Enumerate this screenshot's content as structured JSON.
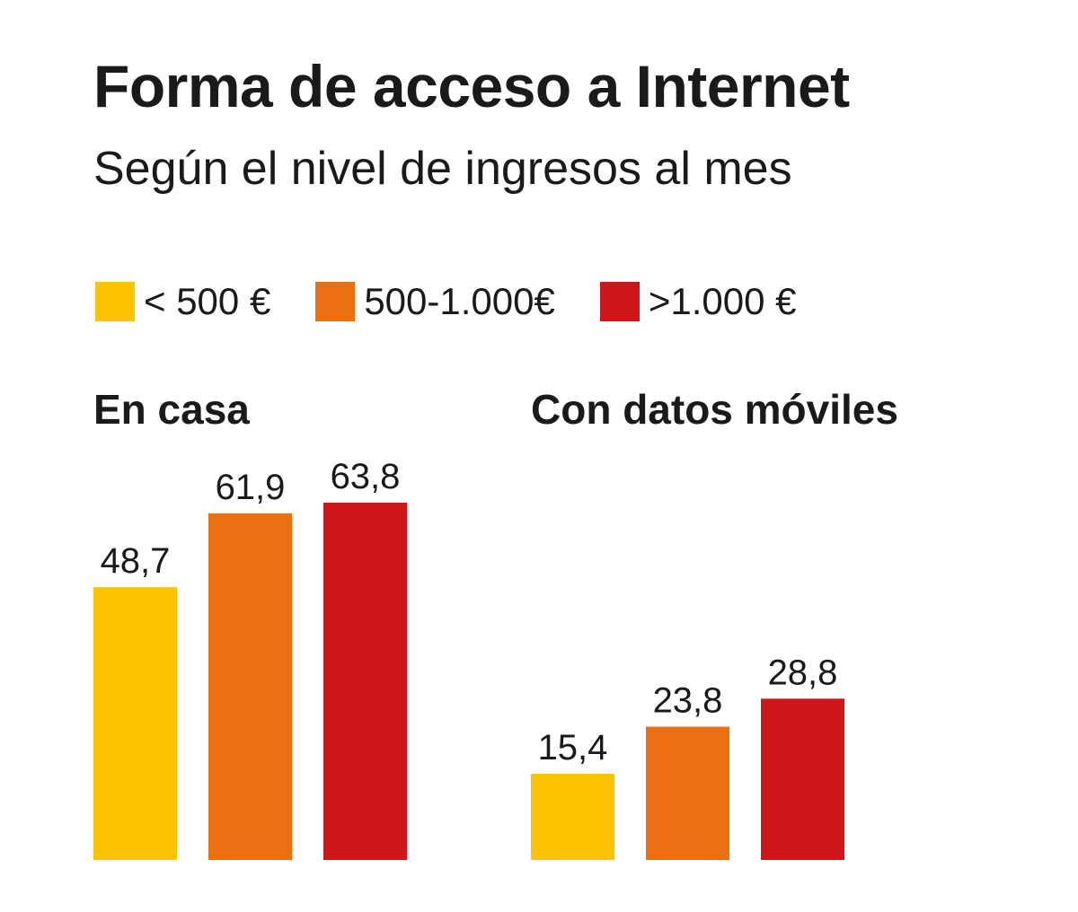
{
  "chart_data": {
    "type": "bar",
    "title": "Forma de acceso a Internet",
    "subtitle": "Según el nivel de ingresos al mes",
    "categories": [
      "En casa",
      "Con datos móviles"
    ],
    "series": [
      {
        "name": "< 500 €",
        "color": "#FDC300",
        "values": [
          48.7,
          15.4
        ],
        "labels": [
          "48,7",
          "15,4"
        ]
      },
      {
        "name": "500-1.000€",
        "color": "#EB7011",
        "values": [
          61.9,
          23.8
        ],
        "labels": [
          "61,9",
          "23,8"
        ]
      },
      {
        "name": ">1.000 €",
        "color": "#CF171B",
        "values": [
          63.8,
          28.8
        ],
        "labels": [
          "63,8",
          "28,8"
        ]
      }
    ],
    "ylim": [
      0,
      70
    ],
    "grid": false,
    "legend": "top-left",
    "xlabel": "",
    "ylabel": ""
  }
}
